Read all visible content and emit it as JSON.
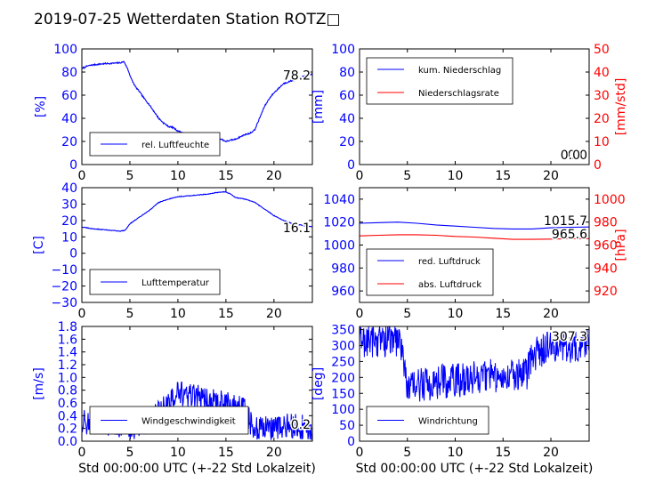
{
  "page": {
    "title": "2019-07-25 Wetterdaten Station ROTZ□",
    "xlabel": "Std 00:00:00 UTC (+-22 Std Lokalzeit)"
  },
  "colors": {
    "left_axis": "#0000ff",
    "right_axis": "#ff0000",
    "series1": "#0000ff",
    "series2": "#ff0000",
    "frame": "#000000"
  },
  "chart_data": [
    {
      "type": "line",
      "id": "humidity",
      "ylabel": "[%]",
      "xlim": [
        0,
        24
      ],
      "ylim": [
        0,
        100
      ],
      "xticks": [
        "0",
        "5",
        "10",
        "15",
        "20"
      ],
      "yticks": [
        "0",
        "20",
        "40",
        "60",
        "80",
        "100"
      ],
      "legend_location": "lower-left",
      "annotation": "78.2",
      "series": [
        {
          "name": "rel. Luftfeuchte",
          "noise": 0.6,
          "points": [
            [
              0,
              83
            ],
            [
              0.5,
              85
            ],
            [
              1,
              86
            ],
            [
              2,
              87
            ],
            [
              3,
              87.5
            ],
            [
              4,
              88
            ],
            [
              4.4,
              89
            ],
            [
              4.8,
              82
            ],
            [
              5.2,
              73
            ],
            [
              5.6,
              67
            ],
            [
              6,
              63
            ],
            [
              6.5,
              57
            ],
            [
              7,
              52
            ],
            [
              7.5,
              46
            ],
            [
              8,
              40
            ],
            [
              8.5,
              36
            ],
            [
              9,
              33
            ],
            [
              9.5,
              32
            ],
            [
              10,
              29
            ],
            [
              11,
              26
            ],
            [
              12,
              25
            ],
            [
              13,
              24
            ],
            [
              14,
              23
            ],
            [
              14.5,
              22
            ],
            [
              15,
              20
            ],
            [
              15.5,
              21
            ],
            [
              16,
              22
            ],
            [
              16.5,
              24
            ],
            [
              17,
              26
            ],
            [
              17.5,
              27
            ],
            [
              18,
              30
            ],
            [
              18.5,
              40
            ],
            [
              19,
              50
            ],
            [
              19.5,
              57
            ],
            [
              20,
              62
            ],
            [
              20.5,
              66
            ],
            [
              21,
              70
            ],
            [
              22,
              73
            ],
            [
              23,
              76
            ],
            [
              24,
              78.2
            ]
          ]
        }
      ]
    },
    {
      "type": "line",
      "id": "precipitation",
      "ylabel": "[mm]",
      "ylabel_right": "[mm/std]",
      "xlim": [
        0,
        24
      ],
      "ylim": [
        0,
        100
      ],
      "ylim_right": [
        0,
        50
      ],
      "xticks": [
        "0",
        "5",
        "10",
        "15",
        "20"
      ],
      "yticks": [
        "0",
        "20",
        "40",
        "60",
        "80",
        "100"
      ],
      "yticks_right": [
        "0",
        "10",
        "20",
        "30",
        "40",
        "50"
      ],
      "legend_location": "upper-left",
      "annotation": "0.0",
      "annotation2": "0.0",
      "series": [
        {
          "name": "kum. Niederschlag",
          "points": [
            [
              0,
              0
            ],
            [
              24,
              0
            ]
          ]
        },
        {
          "name": "Niederschlagsrate",
          "axis": "right",
          "points": [
            [
              0,
              0
            ],
            [
              24,
              0
            ]
          ]
        }
      ]
    },
    {
      "type": "line",
      "id": "temperature",
      "ylabel": "[C]",
      "xlim": [
        0,
        24
      ],
      "ylim": [
        -30,
        40
      ],
      "xticks": [
        "0",
        "5",
        "10",
        "15",
        "20"
      ],
      "yticks": [
        "−30",
        "−20",
        "−10",
        "0",
        "10",
        "20",
        "30",
        "40"
      ],
      "legend_location": "lower-left",
      "annotation": "16.1",
      "series": [
        {
          "name": "Lufttemperatur",
          "noise": 0.2,
          "points": [
            [
              0,
              16
            ],
            [
              1,
              15
            ],
            [
              2,
              14.5
            ],
            [
              3,
              14
            ],
            [
              4,
              13.5
            ],
            [
              4.5,
              14
            ],
            [
              5,
              18
            ],
            [
              6,
              22
            ],
            [
              7,
              26
            ],
            [
              8,
              31
            ],
            [
              9,
              33
            ],
            [
              10,
              34.5
            ],
            [
              11,
              35
            ],
            [
              12,
              35.5
            ],
            [
              13,
              36
            ],
            [
              14,
              37
            ],
            [
              15,
              37.5
            ],
            [
              15.5,
              36
            ],
            [
              16,
              34
            ],
            [
              17,
              33
            ],
            [
              18,
              31
            ],
            [
              19,
              27
            ],
            [
              20,
              23
            ],
            [
              21,
              20
            ],
            [
              22,
              18
            ],
            [
              23,
              17
            ],
            [
              24,
              16.1
            ]
          ]
        }
      ]
    },
    {
      "type": "line",
      "id": "pressure",
      "ylabel_right": "[hPa]",
      "xlim": [
        0,
        24
      ],
      "ylim": [
        950,
        1050
      ],
      "ylim_right": [
        910,
        1010
      ],
      "xticks": [
        "0",
        "5",
        "10",
        "15",
        "20"
      ],
      "yticks": [
        "960",
        "980",
        "1000",
        "1020",
        "1040"
      ],
      "yticks_right": [
        "920",
        "940",
        "960",
        "980",
        "1000"
      ],
      "legend_location": "lower-left",
      "annotation": "1015.7",
      "annotation2": "965.6",
      "series": [
        {
          "name": "red. Luftdruck",
          "points": [
            [
              0,
              1019
            ],
            [
              2,
              1019.5
            ],
            [
              4,
              1020
            ],
            [
              6,
              1019
            ],
            [
              8,
              1017.5
            ],
            [
              10,
              1016.5
            ],
            [
              12,
              1015.5
            ],
            [
              14,
              1014.5
            ],
            [
              16,
              1014
            ],
            [
              18,
              1014
            ],
            [
              20,
              1015
            ],
            [
              22,
              1015.5
            ],
            [
              24,
              1015.7
            ]
          ]
        },
        {
          "name": "abs. Luftdruck",
          "axis": "right",
          "points": [
            [
              0,
              968
            ],
            [
              2,
              968.5
            ],
            [
              4,
              969
            ],
            [
              6,
              969
            ],
            [
              8,
              968.5
            ],
            [
              10,
              967.5
            ],
            [
              12,
              967
            ],
            [
              14,
              966
            ],
            [
              16,
              965
            ],
            [
              18,
              965
            ],
            [
              20,
              965.2
            ],
            [
              22,
              965.5
            ],
            [
              24,
              965.6
            ]
          ]
        }
      ]
    },
    {
      "type": "line",
      "id": "wind",
      "ylabel": "[m/s]",
      "xlim": [
        0,
        24
      ],
      "ylim": [
        0,
        1.8
      ],
      "xticks": [
        "0",
        "5",
        "10",
        "15",
        "20"
      ],
      "yticks": [
        "0.0",
        "0.2",
        "0.4",
        "0.6",
        "0.8",
        "1.0",
        "1.2",
        "1.4",
        "1.6",
        "1.8"
      ],
      "legend_location": "lower-center",
      "annotation": "0.2",
      "series": [
        {
          "name": "Windgeschwindigkeit",
          "noise": 0.2,
          "clip": [
            0,
            1.8
          ],
          "points": [
            [
              0,
              0.3
            ],
            [
              2,
              0.3
            ],
            [
              4,
              0.25
            ],
            [
              5,
              0.2
            ],
            [
              6,
              0.25
            ],
            [
              7,
              0.35
            ],
            [
              8,
              0.45
            ],
            [
              9,
              0.6
            ],
            [
              10,
              0.75
            ],
            [
              11,
              0.7
            ],
            [
              12,
              0.7
            ],
            [
              13,
              0.65
            ],
            [
              14,
              0.6
            ],
            [
              15,
              0.6
            ],
            [
              16,
              0.55
            ],
            [
              17,
              0.5
            ],
            [
              17.5,
              0.3
            ],
            [
              18,
              0.2
            ],
            [
              20,
              0.2
            ],
            [
              22,
              0.25
            ],
            [
              24,
              0.2
            ]
          ]
        }
      ]
    },
    {
      "type": "line",
      "id": "winddirection",
      "ylabel": "[deg]",
      "xlim": [
        0,
        24
      ],
      "ylim": [
        0,
        360
      ],
      "xticks": [
        "0",
        "5",
        "10",
        "15",
        "20"
      ],
      "yticks": [
        "0",
        "50",
        "100",
        "150",
        "200",
        "250",
        "300",
        "350"
      ],
      "legend_location": "lower-left",
      "annotation": "307.3",
      "series": [
        {
          "name": "Windrichtung",
          "noise": 55,
          "clip": [
            0,
            360
          ],
          "points": [
            [
              0,
              315
            ],
            [
              2,
              318
            ],
            [
              4,
              315
            ],
            [
              4.5,
              300
            ],
            [
              5,
              160
            ],
            [
              6,
              175
            ],
            [
              8,
              185
            ],
            [
              10,
              190
            ],
            [
              12,
              200
            ],
            [
              14,
              205
            ],
            [
              16,
              210
            ],
            [
              17.5,
              215
            ],
            [
              18,
              260
            ],
            [
              19,
              285
            ],
            [
              20,
              295
            ],
            [
              22,
              300
            ],
            [
              24,
              307.3
            ]
          ]
        }
      ]
    }
  ]
}
